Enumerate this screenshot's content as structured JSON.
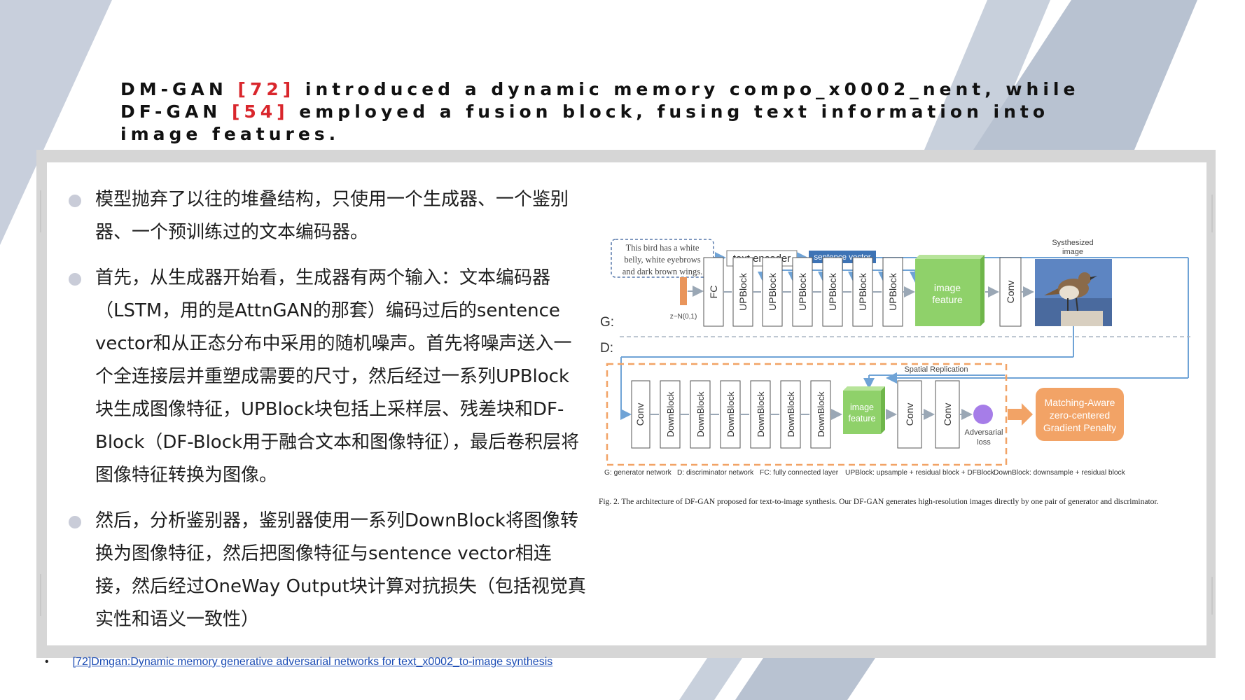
{
  "title": {
    "part1": "DM-GAN ",
    "ref1": "[72]",
    "part2": " introduced a dynamic memory compo_x0002_nent, while DF-GAN ",
    "ref2": "[54]",
    "part3": " employed a fusion block, fusing text information into image features."
  },
  "bullets": [
    {
      "text": "模型抛弃了以往的堆叠结构，只使用一个生成器、一个鉴别器、一个预训练过的文本编码器。"
    },
    {
      "text": "首先，从生成器开始看，生成器有两个输入：文本编码器（LSTM，用的是AttnGAN的那套）编码过后的sentence vector和从正态分布中采用的随机噪声。首先将噪声送入一个全连接层并重塑成需要的尺寸，然后经过一系列UPBlock块生成图像特征，UPBlock块包括上采样层、残差块和DF-Block（DF-Block用于融合文本和图像特征），最后卷积层将图像特征转换为图像。"
    },
    {
      "text": "然后，分析鉴别器，鉴别器使用一系列DownBlock将图像转换为图像特征，然后把图像特征与sentence vector相连接，然后经过OneWay Output块计算对抗损失（包括视觉真实性和语义一致性）"
    }
  ],
  "figure": {
    "caption_text": "This bird has a white belly, white eyebrows and dark brown wings.",
    "caption_lines": [
      "This bird has a white",
      "belly, white eyebrows",
      "and dark brown wings."
    ],
    "text_encoder": "text encoder",
    "sentence_vector": "sentence vector",
    "noise_label": "z~N(0,1)",
    "fc_label": "FC",
    "upblocks": [
      "UPBlock",
      "UPBlock",
      "UPBlock",
      "UPBlock",
      "UPBlock",
      "UPBlock"
    ],
    "image_feature_lines": [
      "image",
      "feature"
    ],
    "conv_label": "Conv",
    "synth_lines": [
      "Systhesized",
      "image"
    ],
    "g_label": "G:",
    "d_label": "D:",
    "spatial_replication": "Spatial Replication",
    "downblocks": [
      "DownBlock",
      "DownBlock",
      "DownBlock",
      "DownBlock",
      "DownBlock",
      "DownBlock"
    ],
    "adv_lines": [
      "Adversarial",
      "loss"
    ],
    "ma_lines": [
      "Matching-Aware",
      "zero-centered",
      "Gradient Penalty"
    ],
    "legend": {
      "g": "G: generator network",
      "d": "D: discriminator network",
      "fc": "FC: fully connected layer",
      "up": "UPBlock: upsample + residual block + DFBlock",
      "down": "DownBlock: downsample + residual block"
    },
    "caption": "Fig. 2. The architecture of DF-GAN proposed for text-to-image synthesis. Our DF-GAN generates high-resolution images directly by one pair of generator and discriminator."
  },
  "footnote": {
    "bullet": "•",
    "link": "[72]Dmgan:Dynamic memory generative adversarial networks for text_x0002_to-image synthesis"
  },
  "colors": {
    "accent_red": "#d9262c",
    "sentence_vector_blue": "#3d73b5",
    "image_feature_green": "#8fd16a",
    "discriminator_orange": "#f2a366",
    "adversarial_purple": "#a67de8"
  }
}
